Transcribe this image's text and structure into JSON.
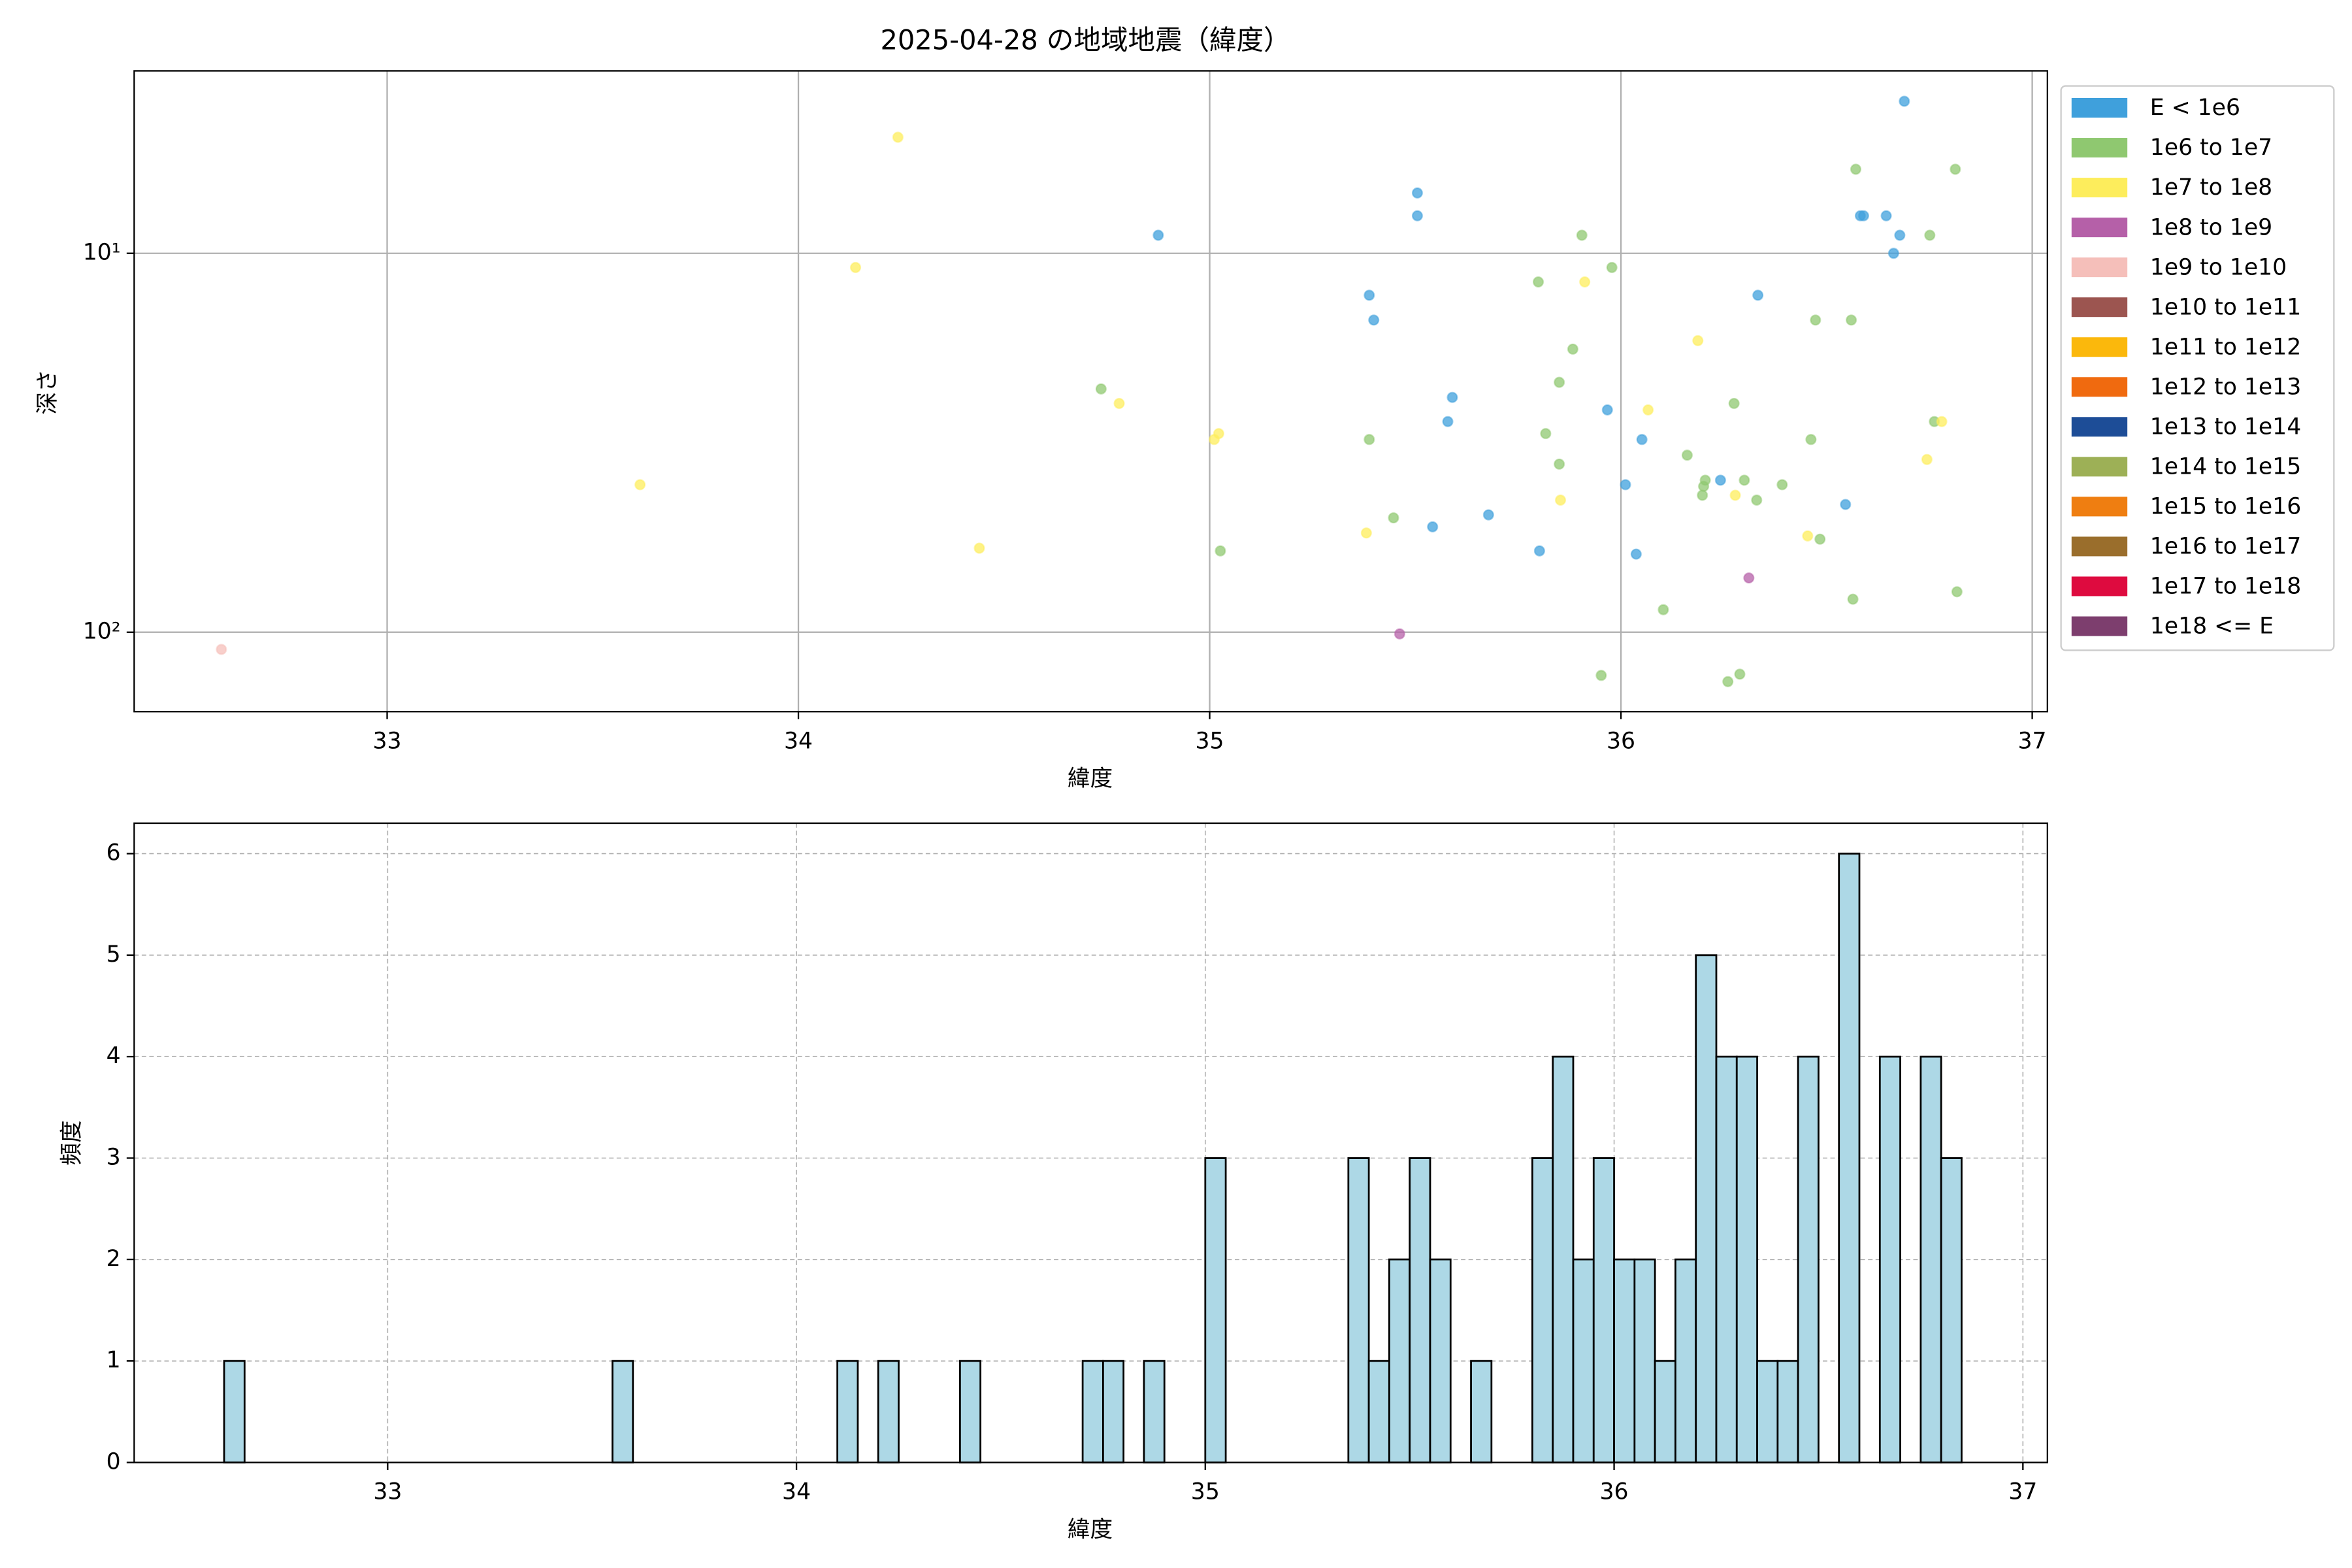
{
  "chart_data": [
    {
      "type": "scatter",
      "title": "2025-04-28 の地域地震（緯度）",
      "xlabel": "緯度",
      "ylabel": "深さ",
      "xlim": [
        32.385,
        37.037
      ],
      "ylim": [
        162,
        3.3
      ],
      "log_y": true,
      "grid": true,
      "legend": "outside right",
      "xticks": [
        33,
        34,
        35,
        36,
        37
      ],
      "yticks": [
        {
          "value": 10,
          "label": "10¹"
        },
        {
          "value": 100,
          "label": "10²"
        }
      ],
      "series": [
        {
          "name": "E < 1e6",
          "color": "#3fa0dc",
          "x": [
            36.689,
            34.875,
            35.505,
            35.505,
            36.582,
            36.59,
            36.645,
            36.678,
            36.663,
            35.388,
            35.399,
            36.333,
            35.59,
            35.579,
            35.967,
            36.051,
            36.011,
            36.242,
            36.546,
            35.678,
            35.542,
            35.802,
            36.037
          ],
          "values": [
            3.97,
            8.96,
            6.93,
            7.96,
            7.96,
            7.96,
            7.96,
            8.96,
            10,
            12.9,
            15.0,
            12.9,
            24.0,
            27.8,
            25.9,
            31.0,
            40.8,
            39.7,
            46.0,
            49.0,
            52.7,
            61.0,
            62.2
          ]
        },
        {
          "name": "1e6 to 1e7",
          "color": "#8fc870",
          "x": [
            36.571,
            36.813,
            35.905,
            36.751,
            35.978,
            35.799,
            36.473,
            36.56,
            35.883,
            35.85,
            36.762,
            36.275,
            35.388,
            35.817,
            36.462,
            36.161,
            35.85,
            36.205,
            36.3,
            36.201,
            36.392,
            36.198,
            36.33,
            35.447,
            36.484,
            35.026,
            36.817,
            36.564,
            36.103,
            35.952,
            36.26,
            36.289,
            34.736
          ],
          "values": [
            6.0,
            6.0,
            8.96,
            8.96,
            10.9,
            11.9,
            15.0,
            15.0,
            17.9,
            21.9,
            27.8,
            24.9,
            31.0,
            29.9,
            31.0,
            34.1,
            36.0,
            39.7,
            39.7,
            41.2,
            40.8,
            43.5,
            44.8,
            49.9,
            56.8,
            61.0,
            78.2,
            81.8,
            87.2,
            130,
            135,
            129,
            22.8
          ]
        },
        {
          "name": "1e7 to 1e8",
          "color": "#fded5c",
          "x": [
            34.242,
            34.139,
            35.912,
            36.187,
            34.78,
            36.066,
            36.78,
            35.022,
            35.011,
            36.744,
            33.615,
            35.853,
            36.278,
            35.381,
            36.454,
            34.44
          ],
          "values": [
            4.94,
            10.9,
            11.9,
            17.0,
            24.9,
            25.9,
            27.8,
            29.9,
            31.0,
            35.0,
            40.8,
            44.8,
            43.5,
            54.7,
            55.7,
            60.0
          ]
        },
        {
          "name": "1e8 to 1e9",
          "color": "#b560a8",
          "x": [
            36.311,
            35.462
          ],
          "values": [
            71.9,
            101
          ]
        },
        {
          "name": "1e9 to 1e10",
          "color": "#f5bfba",
          "x": [
            32.597
          ],
          "values": [
            111
          ]
        },
        {
          "name": "1e10 to 1e11",
          "color": "#9c5550",
          "x": [],
          "values": []
        },
        {
          "name": "1e11 to 1e12",
          "color": "#fbb80c",
          "x": [],
          "values": []
        },
        {
          "name": "1e12 to 1e13",
          "color": "#f06a0f",
          "x": [],
          "values": []
        },
        {
          "name": "1e13 to 1e14",
          "color": "#1d4d97",
          "x": [],
          "values": []
        },
        {
          "name": "1e14 to 1e15",
          "color": "#9db056",
          "x": [],
          "values": []
        },
        {
          "name": "1e15 to 1e16",
          "color": "#ef7e11",
          "x": [],
          "values": []
        },
        {
          "name": "1e16 to 1e17",
          "color": "#9a6e2c",
          "x": [],
          "values": []
        },
        {
          "name": "1e17 to 1e18",
          "color": "#de0b3f",
          "x": [],
          "values": []
        },
        {
          "name": "1e18 <= E",
          "color": "#7d3e6e",
          "x": [],
          "values": []
        }
      ]
    },
    {
      "type": "histogram",
      "xlabel": "緯度",
      "ylabel": "頻度",
      "color": "#add8e6",
      "edgecolor": "#000000",
      "grid": "dashed",
      "xlim": [
        32.38,
        37.06
      ],
      "ylim": [
        0,
        6.3
      ],
      "xticks": [
        33,
        34,
        35,
        36,
        37
      ],
      "yticks": [
        0,
        1,
        2,
        3,
        4,
        5,
        6
      ],
      "bins": [
        32.6,
        32.65,
        32.7,
        32.75,
        32.8,
        32.85,
        32.9,
        32.95,
        33.0,
        33.05,
        33.1,
        33.15,
        33.2,
        33.25,
        33.3,
        33.35,
        33.4,
        33.45,
        33.5,
        33.55,
        33.6,
        33.65,
        33.7,
        33.75,
        33.8,
        33.85,
        33.9,
        33.95,
        34.0,
        34.05,
        34.1,
        34.15,
        34.2,
        34.25,
        34.3,
        34.35,
        34.4,
        34.45,
        34.5,
        34.55,
        34.6,
        34.65,
        34.7,
        34.75,
        34.8,
        34.85,
        34.9,
        34.95,
        35.0,
        35.05,
        35.1,
        35.15,
        35.2,
        35.25,
        35.3,
        35.35,
        35.4,
        35.45,
        35.5,
        35.55,
        35.6,
        35.65,
        35.7,
        35.75,
        35.8,
        35.85,
        35.9,
        35.95,
        36.0,
        36.05,
        36.1,
        36.15,
        36.2,
        36.25,
        36.3,
        36.35,
        36.4,
        36.45,
        36.5,
        36.55,
        36.6,
        36.65,
        36.7,
        36.75,
        36.8,
        36.85
      ],
      "values": [
        1,
        0,
        0,
        0,
        0,
        0,
        0,
        0,
        0,
        0,
        0,
        0,
        0,
        0,
        0,
        0,
        0,
        0,
        0,
        1,
        0,
        0,
        0,
        0,
        0,
        0,
        0,
        0,
        0,
        0,
        1,
        0,
        1,
        0,
        0,
        0,
        1,
        0,
        0,
        0,
        0,
        0,
        1,
        1,
        0,
        1,
        0,
        0,
        3,
        0,
        0,
        0,
        0,
        0,
        0,
        3,
        1,
        2,
        3,
        2,
        0,
        1,
        0,
        0,
        3,
        4,
        2,
        3,
        2,
        2,
        1,
        2,
        5,
        4,
        4,
        1,
        1,
        4,
        0,
        6,
        0,
        4,
        0,
        4,
        3
      ]
    }
  ]
}
